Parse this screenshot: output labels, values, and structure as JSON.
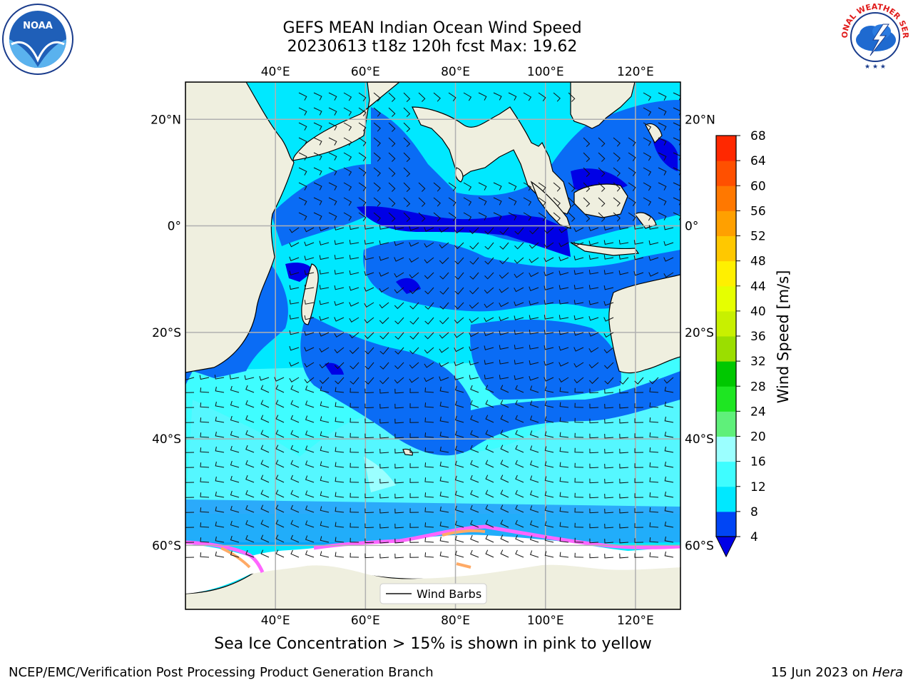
{
  "title_line1": "GEFS MEAN Indian Ocean Wind Speed",
  "title_line2": "20230613 t18z 120h fcst   Max: 19.62",
  "map": {
    "lon_range": [
      20,
      130
    ],
    "lat_range": [
      -72,
      27
    ],
    "lon_ticks": [
      {
        "value": 40,
        "label": "40°E"
      },
      {
        "value": 60,
        "label": "60°E"
      },
      {
        "value": 80,
        "label": "80°E"
      },
      {
        "value": 100,
        "label": "100°E"
      },
      {
        "value": 120,
        "label": "120°E"
      }
    ],
    "lat_ticks": [
      {
        "value": 20,
        "label": "20°N"
      },
      {
        "value": 0,
        "label": "0°"
      },
      {
        "value": -20,
        "label": "20°S"
      },
      {
        "value": -40,
        "label": "40°S"
      },
      {
        "value": -60,
        "label": "60°S"
      }
    ],
    "grid": true,
    "legend_label": "Wind Barbs",
    "legend_placement": "bottom-center"
  },
  "colorbar": {
    "label": "Wind Speed [m/s]",
    "ticks": [
      "4",
      "8",
      "12",
      "16",
      "20",
      "24",
      "28",
      "32",
      "36",
      "40",
      "44",
      "48",
      "52",
      "56",
      "60",
      "64",
      "68"
    ],
    "colors": [
      "#0045f5",
      "#00e8ff",
      "#3ffdff",
      "#9bffff",
      "#5ff07a",
      "#1ee622",
      "#00c800",
      "#9bde00",
      "#c8f000",
      "#e6ff00",
      "#fff000",
      "#ffc800",
      "#ffa000",
      "#ff7800",
      "#ff5000",
      "#ff2800"
    ],
    "extend_color": "#0000e6"
  },
  "colors": {
    "land": "#efefdf",
    "ice": "#ffffff",
    "ice_edge_pink": "#ff66ff",
    "ice_edge_orange": "#ffaa66",
    "speed_dark": "#0000e6",
    "speed_blue": "#0a6cf5",
    "speed_cyan": "#00e8ff",
    "speed_light": "#55f7ff"
  },
  "footer": {
    "note": "Sea Ice Concentration > 15% is shown in pink to yellow",
    "left": "NCEP/EMC/Verification Post Processing Product Generation Branch",
    "right_date": "15 Jun 2023 on",
    "right_host": "Hera"
  },
  "logos": {
    "noaa": "NOAA",
    "nws": "NATIONAL WEATHER SERVICE"
  }
}
